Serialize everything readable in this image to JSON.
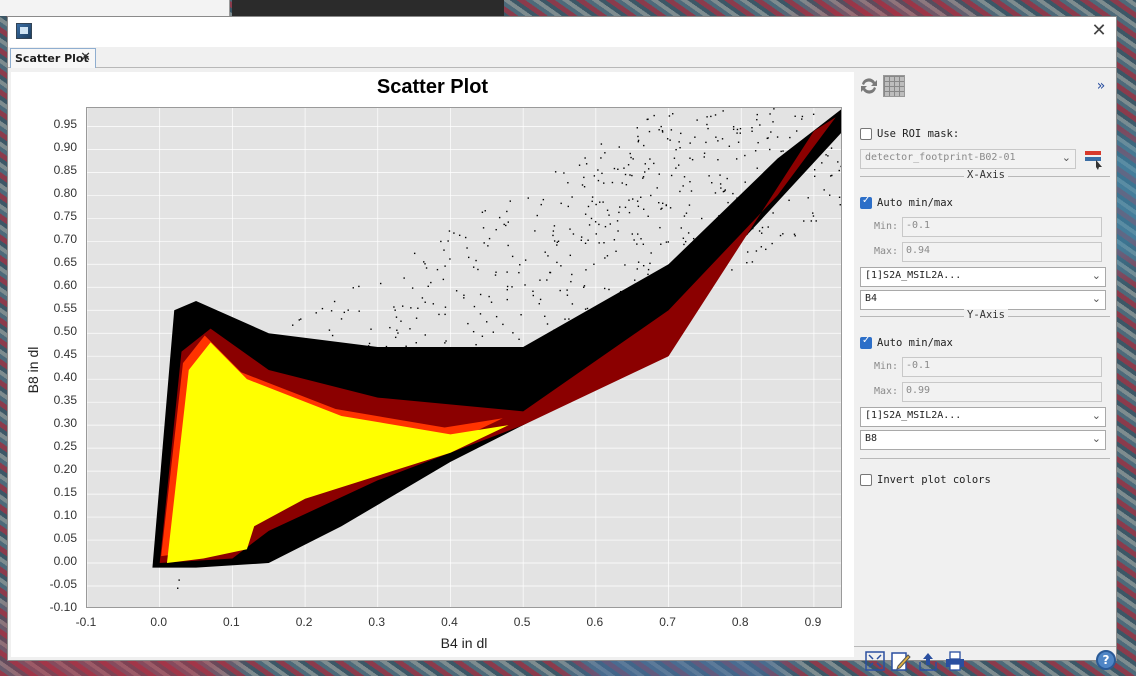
{
  "window": {
    "tab_label": "Scatter Plot",
    "tab_close": "✕",
    "close_glyph": "✕"
  },
  "chart_data": {
    "type": "scatter",
    "title": "Scatter Plot",
    "xlabel": "B4 in dl",
    "ylabel": "B8 in dl",
    "xlim": [
      -0.1,
      0.94
    ],
    "ylim": [
      -0.1,
      0.99
    ],
    "xticks": [
      "-0.1",
      "0.0",
      "0.1",
      "0.2",
      "0.3",
      "0.4",
      "0.5",
      "0.6",
      "0.7",
      "0.8",
      "0.9"
    ],
    "xtick_values": [
      -0.1,
      0.0,
      0.1,
      0.2,
      0.3,
      0.4,
      0.5,
      0.6,
      0.7,
      0.8,
      0.9
    ],
    "yticks": [
      "0.95",
      "0.90",
      "0.85",
      "0.80",
      "0.75",
      "0.70",
      "0.65",
      "0.60",
      "0.55",
      "0.50",
      "0.45",
      "0.40",
      "0.35",
      "0.30",
      "0.25",
      "0.20",
      "0.15",
      "0.10",
      "0.05",
      "0.00",
      "-0.05",
      "-0.10"
    ],
    "ytick_values": [
      0.95,
      0.9,
      0.85,
      0.8,
      0.75,
      0.7,
      0.65,
      0.6,
      0.55,
      0.5,
      0.45,
      0.4,
      0.35,
      0.3,
      0.25,
      0.2,
      0.15,
      0.1,
      0.05,
      0.0,
      -0.05,
      -0.1
    ],
    "density_colors": [
      "#000000",
      "#8b0000",
      "#ff3300",
      "#ffff00"
    ],
    "background_color": "#e3e3e3",
    "grid": true,
    "density_regions": {
      "core_yellow": [
        [
          0.01,
          0.0
        ],
        [
          0.04,
          0.42
        ],
        [
          0.07,
          0.48
        ],
        [
          0.12,
          0.4
        ],
        [
          0.25,
          0.32
        ],
        [
          0.4,
          0.28
        ],
        [
          0.48,
          0.3
        ],
        [
          0.4,
          0.24
        ],
        [
          0.2,
          0.14
        ],
        [
          0.13,
          0.08
        ],
        [
          0.12,
          0.03
        ],
        [
          0.06,
          0.01
        ]
      ],
      "mid_red": [
        [
          0.0,
          0.0
        ],
        [
          0.03,
          0.46
        ],
        [
          0.07,
          0.51
        ],
        [
          0.15,
          0.42
        ],
        [
          0.3,
          0.36
        ],
        [
          0.5,
          0.33
        ],
        [
          0.7,
          0.55
        ],
        [
          0.85,
          0.8
        ],
        [
          0.93,
          0.97
        ],
        [
          0.9,
          0.94
        ],
        [
          0.7,
          0.45
        ],
        [
          0.5,
          0.3
        ],
        [
          0.3,
          0.18
        ],
        [
          0.15,
          0.07
        ],
        [
          0.1,
          0.01
        ]
      ],
      "outer_black": [
        [
          -0.01,
          -0.01
        ],
        [
          0.02,
          0.55
        ],
        [
          0.05,
          0.57
        ],
        [
          0.15,
          0.5
        ],
        [
          0.3,
          0.47
        ],
        [
          0.5,
          0.47
        ],
        [
          0.7,
          0.65
        ],
        [
          0.85,
          0.88
        ],
        [
          0.94,
          0.99
        ],
        [
          0.94,
          0.94
        ],
        [
          0.8,
          0.7
        ],
        [
          0.6,
          0.38
        ],
        [
          0.4,
          0.22
        ],
        [
          0.25,
          0.08
        ],
        [
          0.15,
          0.0
        ],
        [
          0.05,
          -0.01
        ]
      ]
    }
  },
  "side": {
    "expand_glyph": "»",
    "use_roi_label": "Use ROI mask:",
    "roi_mask_value": "detector_footprint-B02-01",
    "x_axis_label": "X-Axis",
    "x_auto_label": "Auto min/max",
    "x_min_label": "Min:",
    "x_min_value": "-0.1",
    "x_max_label": "Max:",
    "x_max_value": "0.94",
    "x_product": "[1]S2A_MSIL2A...",
    "x_band": "B4",
    "y_axis_label": "Y-Axis",
    "y_auto_label": "Auto min/max",
    "y_min_label": "Min:",
    "y_min_value": "-0.1",
    "y_max_label": "Max:",
    "y_max_value": "0.99",
    "y_product": "[1]S2A_MSIL2A...",
    "y_band": "B8",
    "invert_label": "Invert plot colors",
    "help_glyph": "?",
    "dropdown_glyph": "⌄"
  }
}
